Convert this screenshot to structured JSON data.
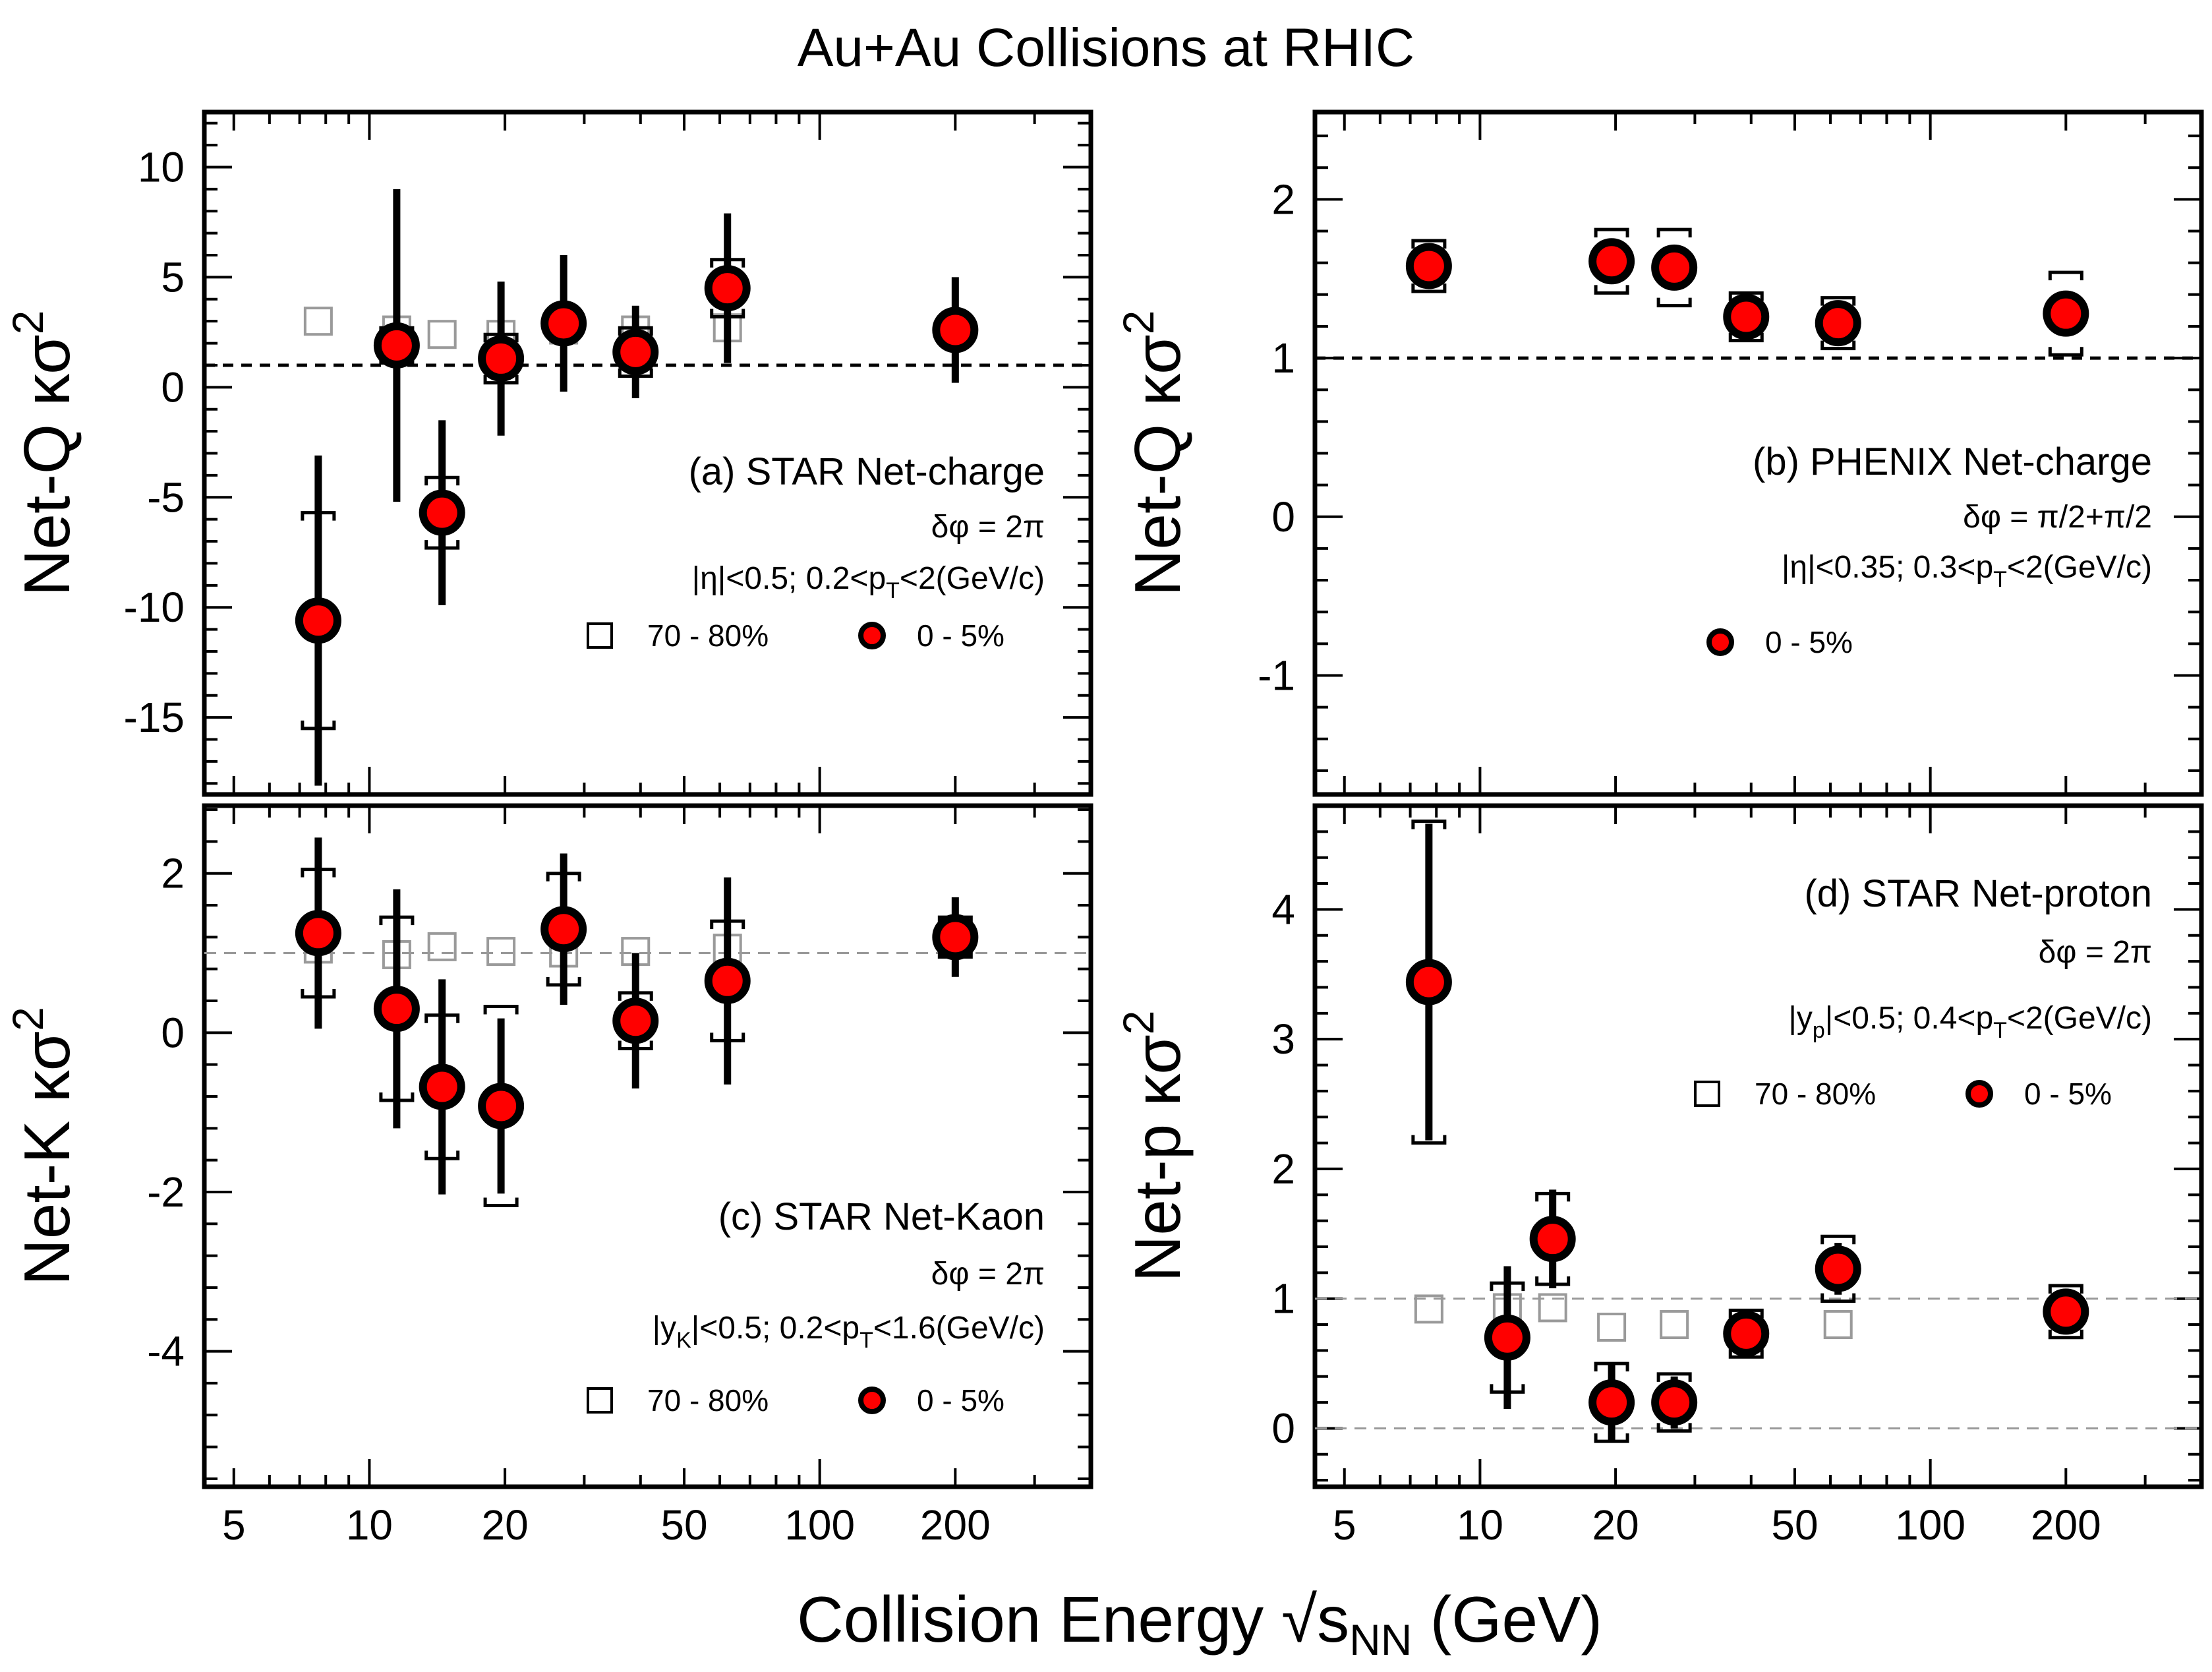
{
  "title": "Au+Au Collisions at RHIC",
  "xlabel": {
    "main": "Collision Energy √s",
    "sub": "NN",
    "unit": " (GeV)"
  },
  "x_tick_labels": [
    "5",
    "10",
    "20",
    "50",
    "100",
    "200"
  ],
  "colors": {
    "central_fill": "#ff0000",
    "peripheral_stroke": "#9a9a9a",
    "outline": "#000000"
  },
  "chart_data": [
    {
      "id": "a",
      "type": "scatter",
      "ylabel": {
        "pre": "Net-Q ",
        "mid": "κσ",
        "sup": "2"
      },
      "label": "(a) STAR Net-charge",
      "line2": "δφ = 2π",
      "line3": {
        "p1": "|η|<0.5; 0.2<p",
        "sub": "T",
        "p2": "<2(GeV/c)"
      },
      "legend": {
        "peripheral": "70 - 80%",
        "central": "0 - 5%"
      },
      "xscale": "log",
      "xlim": [
        4.3,
        400
      ],
      "ylim": [
        -18.5,
        12.5
      ],
      "yticks": [
        -15,
        -10,
        -5,
        0,
        5,
        10
      ],
      "reference_lines": [
        {
          "y": 1,
          "style": "dashed-bold"
        }
      ],
      "series": [
        {
          "name": "0 - 5%",
          "x": [
            7.7,
            11.5,
            14.5,
            19.6,
            27,
            39,
            62.4,
            200
          ],
          "y": [
            -10.6,
            1.9,
            -5.7,
            1.3,
            2.9,
            1.6,
            4.5,
            2.6
          ],
          "stat_err": [
            7.5,
            7.1,
            4.2,
            3.5,
            3.1,
            2.1,
            3.4,
            2.4
          ],
          "sys_err": [
            4.9,
            0.8,
            1.6,
            1.1,
            0.5,
            1.1,
            1.3,
            0.4
          ]
        },
        {
          "name": "70 - 80%",
          "x": [
            7.7,
            11.5,
            14.5,
            19.6,
            27,
            39,
            62.4
          ],
          "y": [
            3.0,
            2.6,
            2.4,
            2.4,
            2.6,
            2.6,
            2.7
          ]
        }
      ]
    },
    {
      "id": "b",
      "type": "scatter",
      "ylabel": {
        "pre": "Net-Q ",
        "mid": "κσ",
        "sup": "2"
      },
      "label": "(b) PHENIX Net-charge",
      "line2": "δφ = π/2+π/2",
      "line3": {
        "p1": "|η|<0.35; 0.3<p",
        "sub": "T",
        "p2": "<2(GeV/c)"
      },
      "legend": {
        "central": "0 - 5%"
      },
      "xscale": "log",
      "xlim": [
        4.3,
        400
      ],
      "ylim": [
        -1.75,
        2.55
      ],
      "yticks": [
        -1,
        0,
        1,
        2
      ],
      "reference_lines": [
        {
          "y": 1,
          "style": "dashed-bold"
        }
      ],
      "series": [
        {
          "name": "0 - 5%",
          "x": [
            7.7,
            19.6,
            27,
            39,
            62.4,
            200
          ],
          "y": [
            1.58,
            1.61,
            1.57,
            1.26,
            1.22,
            1.28
          ],
          "stat_err": [
            0.05,
            0.05,
            0.05,
            0.05,
            0.05,
            0.05
          ],
          "sys_err": [
            0.16,
            0.2,
            0.24,
            0.15,
            0.16,
            0.26
          ]
        }
      ]
    },
    {
      "id": "c",
      "type": "scatter",
      "ylabel": {
        "pre": "Net-K ",
        "mid": "κσ",
        "sup": "2"
      },
      "label": "(c) STAR Net-Kaon",
      "line2": "δφ = 2π",
      "line3": {
        "p1": "|y",
        "sub": "K",
        "p2": "|<0.5; 0.2<p",
        "sub2": "T",
        "p3": "<1.6(GeV/c)"
      },
      "legend": {
        "peripheral": "70 - 80%",
        "central": "0 - 5%"
      },
      "xscale": "log",
      "xlim": [
        4.3,
        400
      ],
      "ylim": [
        -5.7,
        2.85
      ],
      "yticks": [
        -4,
        -2,
        0,
        2
      ],
      "reference_lines": [
        {
          "y": 1,
          "style": "dashed-gray"
        }
      ],
      "series": [
        {
          "name": "0 - 5%",
          "x": [
            7.7,
            11.5,
            14.5,
            19.6,
            27,
            39,
            62.4,
            200
          ],
          "y": [
            1.25,
            0.3,
            -0.68,
            -0.92,
            1.3,
            0.15,
            0.65,
            1.2
          ],
          "stat_err": [
            1.2,
            1.5,
            1.35,
            1.1,
            0.95,
            0.85,
            1.3,
            0.5
          ],
          "sys_err": [
            0.8,
            1.15,
            0.9,
            1.25,
            0.7,
            0.35,
            0.75,
            0.25
          ]
        },
        {
          "name": "70 - 80%",
          "x": [
            7.7,
            11.5,
            14.5,
            19.6,
            27,
            39,
            62.4
          ],
          "y": [
            1.05,
            0.98,
            1.08,
            1.02,
            1.0,
            1.02,
            1.06
          ]
        }
      ]
    },
    {
      "id": "d",
      "type": "scatter",
      "ylabel": {
        "pre": "Net-p ",
        "mid": "κσ",
        "sup": "2"
      },
      "label": "(d) STAR Net-proton",
      "line2": "δφ = 2π",
      "line3": {
        "p1": "|y",
        "sub": "p",
        "p2": "|<0.5; 0.4<p",
        "sub2": "T",
        "p3": "<2(GeV/c)"
      },
      "legend": {
        "peripheral": "70 - 80%",
        "central": "0 - 5%"
      },
      "xscale": "log",
      "xlim": [
        4.3,
        400
      ],
      "ylim": [
        -0.45,
        4.8
      ],
      "yticks": [
        0,
        1,
        2,
        3,
        4
      ],
      "reference_lines": [
        {
          "y": 1,
          "style": "dashed-gray"
        },
        {
          "y": 0,
          "style": "dashed-gray"
        }
      ],
      "series": [
        {
          "name": "0 - 5%",
          "x": [
            7.7,
            11.5,
            14.5,
            19.6,
            27,
            39,
            62.4,
            200
          ],
          "y": [
            3.44,
            0.7,
            1.46,
            0.2,
            0.2,
            0.73,
            1.23,
            0.9
          ],
          "stat_err": [
            1.22,
            0.55,
            0.38,
            0.3,
            0.2,
            0.12,
            0.2,
            0.15
          ],
          "sys_err": [
            1.24,
            0.42,
            0.35,
            0.3,
            0.22,
            0.18,
            0.25,
            0.2
          ]
        },
        {
          "name": "70 - 80%",
          "x": [
            7.7,
            11.5,
            14.5,
            19.6,
            27,
            39,
            62.4
          ],
          "y": [
            0.92,
            0.93,
            0.93,
            0.78,
            0.8,
            0.75,
            0.8
          ]
        }
      ]
    }
  ]
}
